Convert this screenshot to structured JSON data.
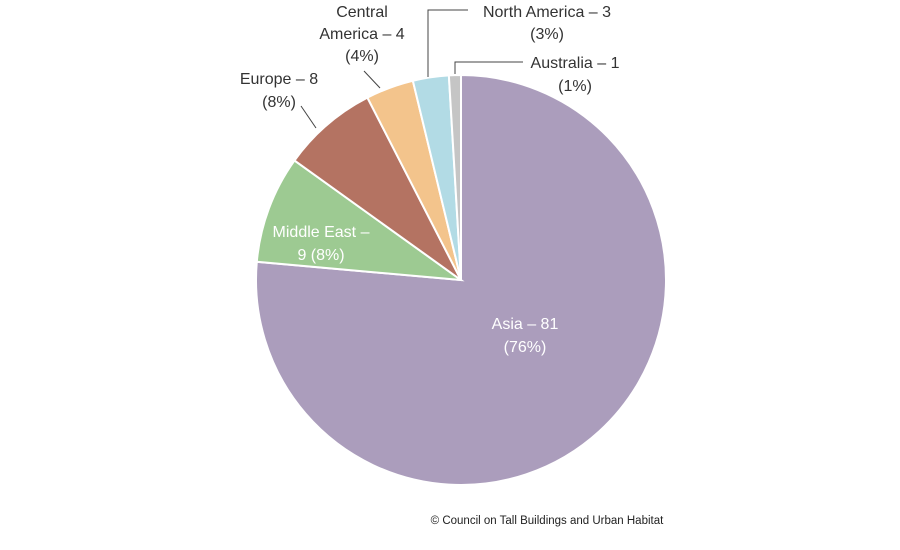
{
  "chart_data": {
    "type": "pie",
    "title": "",
    "slices": [
      {
        "name": "Asia",
        "value": 81,
        "percent": 76,
        "color": "#ab9dbc",
        "label_line1": "Asia – 81",
        "label_line2": "(76%)"
      },
      {
        "name": "Middle East",
        "value": 9,
        "percent": 8,
        "color": "#9dca92",
        "label_line1": "Middle East –",
        "label_line2": "9 (8%)"
      },
      {
        "name": "Europe",
        "value": 8,
        "percent": 8,
        "color": "#b47362",
        "label_line1": "Europe – 8",
        "label_line2": "(8%)"
      },
      {
        "name": "Central America",
        "value": 4,
        "percent": 4,
        "color": "#f3c48c",
        "label_line1": "Central",
        "label_line2": "America – 4",
        "label_line3": "(4%)"
      },
      {
        "name": "North America",
        "value": 3,
        "percent": 3,
        "color": "#b2dbe5",
        "label_line1": "North America – 3",
        "label_line2": "(3%)"
      },
      {
        "name": "Australia",
        "value": 1,
        "percent": 1,
        "color": "#c5c5c5",
        "label_line1": "Australia – 1",
        "label_line2": "(1%)"
      }
    ],
    "start_angle_deg": 0,
    "direction": "clockwise-from-top-via-left",
    "legend": "none"
  },
  "credit": "© Council on Tall Buildings and Urban Habitat"
}
